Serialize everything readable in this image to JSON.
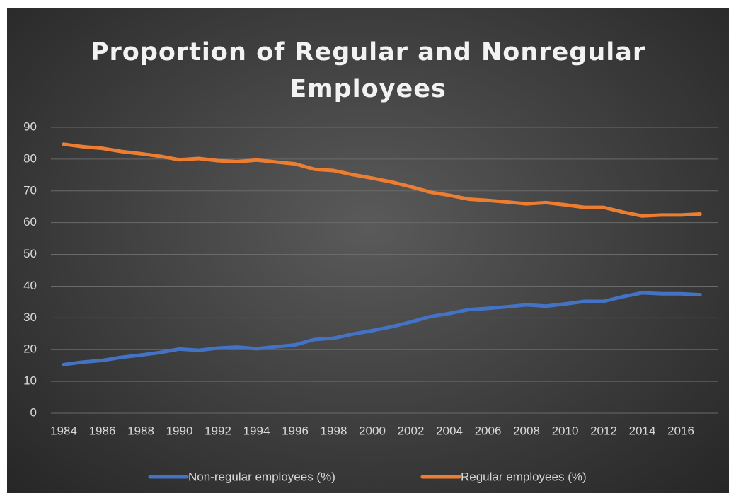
{
  "chart_data": {
    "type": "line",
    "title": "Proportion of Regular and Nonregular Employees",
    "categories": [
      "1984",
      null,
      "1986",
      null,
      "1988",
      null,
      "1990",
      null,
      "1992",
      null,
      "1994",
      null,
      "1996",
      null,
      "1998",
      null,
      "2000",
      null,
      "2002",
      null,
      "2004",
      null,
      "2006",
      null,
      "2008",
      null,
      "2010",
      null,
      "2012",
      null,
      "2014",
      null,
      "2016",
      null
    ],
    "series": [
      {
        "name": "Non-regular employees (%)",
        "color": "#4472c4",
        "values": [
          15.3,
          16.1,
          16.6,
          17.6,
          18.3,
          19.1,
          20.2,
          19.8,
          20.5,
          20.8,
          20.3,
          20.9,
          21.5,
          23.2,
          23.6,
          24.9,
          26.0,
          27.2,
          28.7,
          30.4,
          31.4,
          32.6,
          33.0,
          33.5,
          34.1,
          33.7,
          34.4,
          35.2,
          35.2,
          36.7,
          37.9,
          37.6,
          37.6,
          37.3
        ]
      },
      {
        "name": "Regular employees (%)",
        "color": "#ed7d31",
        "values": [
          84.7,
          83.9,
          83.4,
          82.4,
          81.7,
          80.9,
          79.8,
          80.2,
          79.5,
          79.2,
          79.7,
          79.1,
          78.5,
          76.8,
          76.4,
          75.1,
          74.0,
          72.8,
          71.3,
          69.6,
          68.6,
          67.4,
          67.0,
          66.5,
          65.9,
          66.3,
          65.6,
          64.8,
          64.8,
          63.3,
          62.1,
          62.4,
          62.4,
          62.7
        ]
      }
    ],
    "ylim": [
      0,
      90
    ],
    "yticks": [
      0,
      10,
      20,
      30,
      40,
      50,
      60,
      70,
      80,
      90
    ],
    "grid": true,
    "legend": "bottom"
  }
}
